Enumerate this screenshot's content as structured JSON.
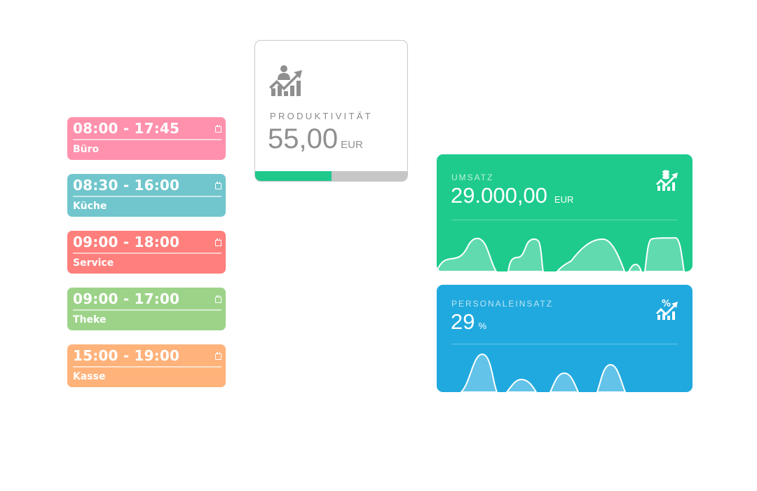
{
  "shifts": [
    {
      "time": "08:00 - 17:45",
      "name": "Büro",
      "color": "#ff91ad"
    },
    {
      "time": "08:30 - 16:00",
      "name": "Küche",
      "color": "#70c6cc"
    },
    {
      "time": "09:00 - 18:00",
      "name": "Service",
      "color": "#ff7f7c"
    },
    {
      "time": "09:00 - 17:00",
      "name": "Theke",
      "color": "#9cd389"
    },
    {
      "time": "15:00 - 19:00",
      "name": "Kasse",
      "color": "#ffb27a"
    }
  ],
  "productivity": {
    "label": "PRODUKTIVITÄT",
    "value": "55,00",
    "unit": "EUR",
    "progress_percent": 50,
    "icon": "person-growth-chart-icon",
    "accent": "#1ec98b"
  },
  "revenue": {
    "label": "UMSATZ",
    "value": "29.000,00",
    "unit": "EUR",
    "icon": "coins-growth-chart-icon",
    "color": "#1ecb8d"
  },
  "staffing": {
    "label": "PERSONALEINSATZ",
    "value": "29",
    "unit": "%",
    "icon": "percent-growth-chart-icon",
    "color": "#20a9de"
  }
}
